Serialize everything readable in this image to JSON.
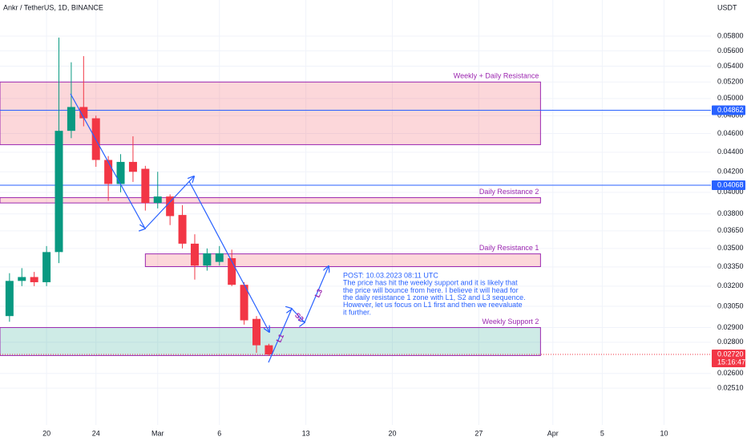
{
  "chart_data": {
    "type": "candlestick",
    "title": "Ankr / TetherUS, 1D, BINANCE",
    "currency": "USDT",
    "log_scale": true,
    "grid": true,
    "up_color": "#089981",
    "down_color": "#f23645",
    "xlim": [
      16.23,
      73.8
    ],
    "ylim": [
      0.023,
      0.0632
    ],
    "xticks": [
      20,
      {
        "value": 24,
        "label": "24"
      },
      {
        "value": 29,
        "label": "Mar"
      },
      {
        "value": 34,
        "label": "6"
      },
      {
        "value": 41,
        "label": "13"
      },
      {
        "value": 48,
        "label": "20"
      },
      {
        "value": 55,
        "label": "27"
      },
      {
        "value": 61,
        "label": "Apr"
      },
      {
        "value": 65,
        "label": "5"
      },
      {
        "value": 70,
        "label": "10"
      }
    ],
    "yticks": [
      {
        "value": 0.058,
        "label": "0.05800"
      },
      {
        "value": 0.056,
        "label": "0.05600"
      },
      {
        "value": 0.054,
        "label": "0.05400"
      },
      {
        "value": 0.052,
        "label": "0.05200"
      },
      {
        "value": 0.05,
        "label": "0.05000"
      },
      {
        "value": 0.048,
        "label": "0.04800"
      },
      {
        "value": 0.046,
        "label": "0.04600"
      },
      {
        "value": 0.044,
        "label": "0.04400"
      },
      {
        "value": 0.042,
        "label": "0.04200"
      },
      {
        "value": 0.04,
        "label": "0.04000"
      },
      {
        "value": 0.038,
        "label": "0.03800"
      },
      {
        "value": 0.0365,
        "label": "0.03650"
      },
      {
        "value": 0.035,
        "label": "0.03500"
      },
      {
        "value": 0.0335,
        "label": "0.03350"
      },
      {
        "value": 0.032,
        "label": "0.03200"
      },
      {
        "value": 0.0305,
        "label": "0.03050"
      },
      {
        "value": 0.029,
        "label": "0.02900"
      },
      {
        "value": 0.028,
        "label": "0.02800"
      },
      {
        "value": 0.026,
        "label": "0.02600"
      },
      {
        "value": 0.0251,
        "label": "0.02510"
      }
    ],
    "x": [
      17,
      18,
      19,
      20,
      21,
      22,
      23,
      24,
      25,
      26,
      27,
      28,
      29,
      30,
      31,
      32,
      33,
      34,
      35,
      36,
      37,
      38
    ],
    "open": [
      0.0298,
      0.0324,
      0.0327,
      0.0323,
      0.0347,
      0.0463,
      0.049,
      0.0477,
      0.0432,
      0.0408,
      0.043,
      0.0423,
      0.039,
      0.0396,
      0.0379,
      0.0354,
      0.0336,
      0.0339,
      0.0342,
      0.0321,
      0.0296,
      0.0278
    ],
    "high": [
      0.033,
      0.0334,
      0.0331,
      0.0352,
      0.0578,
      0.0545,
      0.0553,
      0.048,
      0.0436,
      0.0438,
      0.0457,
      0.0426,
      0.042,
      0.0398,
      0.0388,
      0.0362,
      0.035,
      0.0352,
      0.0349,
      0.0323,
      0.0298,
      0.0279
    ],
    "low": [
      0.0294,
      0.032,
      0.032,
      0.032,
      0.0338,
      0.0455,
      0.0468,
      0.0425,
      0.0392,
      0.04,
      0.041,
      0.0383,
      0.0385,
      0.037,
      0.035,
      0.0325,
      0.0332,
      0.0336,
      0.032,
      0.0292,
      0.0273,
      0.0271
    ],
    "close": [
      0.0324,
      0.0327,
      0.0323,
      0.0347,
      0.0463,
      0.049,
      0.0477,
      0.0432,
      0.0408,
      0.043,
      0.042,
      0.039,
      0.0396,
      0.0378,
      0.0354,
      0.0336,
      0.0346,
      0.0346,
      0.0321,
      0.0295,
      0.0278,
      0.0272
    ],
    "zones": [
      {
        "label": "Weekly + Daily Resistance",
        "x": [
          16.23,
          60.0
        ],
        "y": [
          0.0448,
          0.052
        ],
        "color": "#f23645"
      },
      {
        "label": "Daily Resistance 2",
        "x": [
          16.23,
          60.0
        ],
        "y": [
          0.039,
          0.0395
        ],
        "color": "#f23645"
      },
      {
        "label": "Daily Resistance 1",
        "x": [
          28.0,
          60.0
        ],
        "y": [
          0.03352,
          0.03455
        ],
        "color": "#f23645"
      },
      {
        "label": "Weekly Support 2",
        "x": [
          16.23,
          60.0
        ],
        "y": [
          0.02713,
          0.029
        ],
        "color": "#089981"
      }
    ],
    "hlines": [
      {
        "value": 0.04862,
        "label": "0.04862",
        "color": "#2962ff"
      },
      {
        "value": 0.04068,
        "label": "0.04068",
        "color": "#2962ff"
      }
    ],
    "current_price": {
      "value": 0.0272,
      "label": "0.02720",
      "countdown": "15:16:47",
      "color": "#f23645"
    },
    "annotation": [
      "POST: 10.03.2023 08:11 UTC",
      "The price has hit the weekly support and it is likely that",
      "the price will bounce from here. I believe it will head for",
      "the daily resistance 1 zone with L1, S2 and L3 sequence.",
      "However, let us focus on L1 first and then we reevaluate",
      "it further."
    ],
    "wave_labels": [
      "L1",
      "S2",
      "L3"
    ]
  }
}
